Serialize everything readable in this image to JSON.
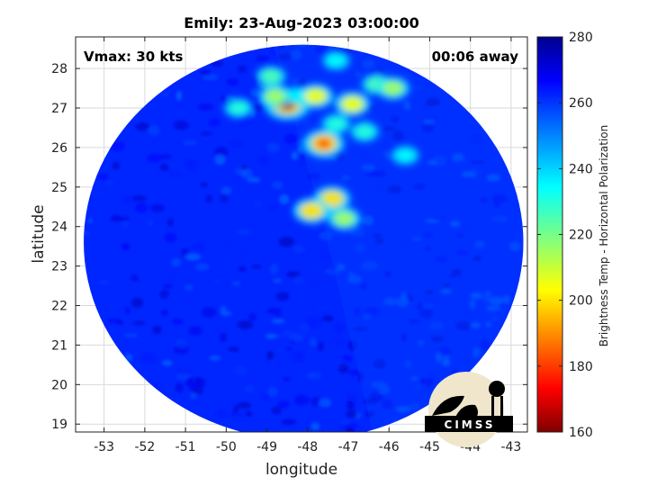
{
  "chart_data": {
    "type": "heatmap",
    "title": "Emily: 23-Aug-2023 03:00:00",
    "xlabel": "longitude",
    "ylabel": "latitude",
    "xlim": [
      -53.7,
      -42.6
    ],
    "ylim": [
      18.8,
      28.8
    ],
    "xticks": [
      -53,
      -52,
      -51,
      -50,
      -49,
      -48,
      -47,
      -46,
      -45,
      -44,
      -43
    ],
    "yticks": [
      19,
      20,
      21,
      22,
      23,
      24,
      25,
      26,
      27,
      28
    ],
    "grid": true,
    "annotations": {
      "left": "Vmax: 30 kts",
      "right": "00:06 away"
    },
    "colorbar": {
      "label": "Brightness Temp - Horizontal Polarization",
      "min": 160,
      "max": 280,
      "ticks": [
        160,
        180,
        200,
        220,
        240,
        260,
        280
      ],
      "colormap": "jet"
    },
    "swath": {
      "center": [
        -48.1,
        23.6
      ],
      "radius_deg_lon": 5.4,
      "radius_deg_lat": 5.0
    },
    "background_tb": 262,
    "cold_features": [
      {
        "lon": -48.5,
        "lat": 27.1,
        "tb": 165
      },
      {
        "lon": -48.8,
        "lat": 27.3,
        "tb": 215
      },
      {
        "lon": -48.9,
        "lat": 27.8,
        "tb": 225
      },
      {
        "lon": -49.7,
        "lat": 27.0,
        "tb": 230
      },
      {
        "lon": -48.2,
        "lat": 27.3,
        "tb": 235
      },
      {
        "lon": -47.8,
        "lat": 27.3,
        "tb": 205
      },
      {
        "lon": -46.9,
        "lat": 27.1,
        "tb": 205
      },
      {
        "lon": -47.3,
        "lat": 26.6,
        "tb": 230
      },
      {
        "lon": -47.6,
        "lat": 26.1,
        "tb": 185
      },
      {
        "lon": -46.6,
        "lat": 26.4,
        "tb": 230
      },
      {
        "lon": -46.3,
        "lat": 27.6,
        "tb": 225
      },
      {
        "lon": -45.9,
        "lat": 27.5,
        "tb": 215
      },
      {
        "lon": -45.6,
        "lat": 25.8,
        "tb": 235
      },
      {
        "lon": -47.4,
        "lat": 24.7,
        "tb": 200
      },
      {
        "lon": -47.9,
        "lat": 24.4,
        "tb": 200
      },
      {
        "lon": -47.1,
        "lat": 24.2,
        "tb": 215
      },
      {
        "lon": -47.3,
        "lat": 28.2,
        "tb": 235
      }
    ],
    "logo": "CIMSS"
  }
}
